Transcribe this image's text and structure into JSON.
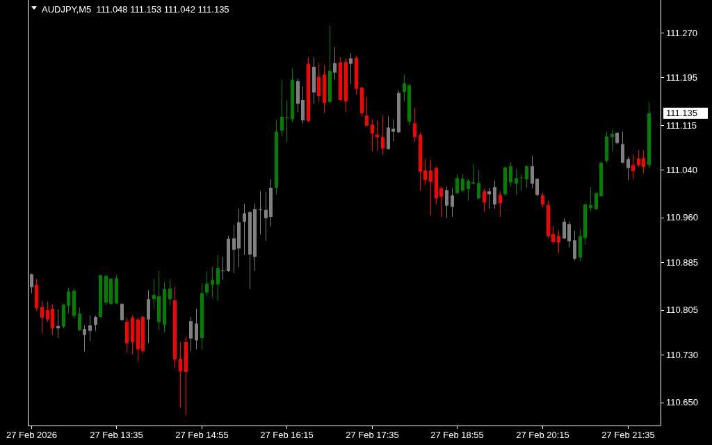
{
  "chart_data": {
    "type": "candlestick",
    "title": "AUDJPY,M5  111.048 111.153 111.042 111.135",
    "x": [
      "2026-02-27T12:15",
      "2026-02-27T12:20",
      "2026-02-27T12:25",
      "2026-02-27T12:30",
      "2026-02-27T12:35",
      "2026-02-27T12:40",
      "2026-02-27T12:45",
      "2026-02-27T12:50",
      "2026-02-27T12:55",
      "2026-02-27T13:00",
      "2026-02-27T13:05",
      "2026-02-27T13:10",
      "2026-02-27T13:15",
      "2026-02-27T13:20",
      "2026-02-27T13:25",
      "2026-02-27T13:30",
      "2026-02-27T13:35",
      "2026-02-27T13:40",
      "2026-02-27T13:45",
      "2026-02-27T13:50",
      "2026-02-27T13:55",
      "2026-02-27T14:00",
      "2026-02-27T14:05",
      "2026-02-27T14:10",
      "2026-02-27T14:15",
      "2026-02-27T14:20",
      "2026-02-27T14:25",
      "2026-02-27T14:30",
      "2026-02-27T14:35",
      "2026-02-27T14:40",
      "2026-02-27T14:45",
      "2026-02-27T14:50",
      "2026-02-27T14:55",
      "2026-02-27T15:00",
      "2026-02-27T15:05",
      "2026-02-27T15:10",
      "2026-02-27T15:15",
      "2026-02-27T15:20",
      "2026-02-27T15:25",
      "2026-02-27T15:30",
      "2026-02-27T15:35",
      "2026-02-27T15:40",
      "2026-02-27T15:45",
      "2026-02-27T15:50",
      "2026-02-27T15:55",
      "2026-02-27T16:00",
      "2026-02-27T16:05",
      "2026-02-27T16:10",
      "2026-02-27T16:15",
      "2026-02-27T16:20",
      "2026-02-27T16:25",
      "2026-02-27T16:30",
      "2026-02-27T16:35",
      "2026-02-27T16:40",
      "2026-02-27T16:45",
      "2026-02-27T16:50",
      "2026-02-27T16:55",
      "2026-02-27T17:00",
      "2026-02-27T17:05",
      "2026-02-27T17:10",
      "2026-02-27T17:15",
      "2026-02-27T17:20",
      "2026-02-27T17:25",
      "2026-02-27T17:30",
      "2026-02-27T17:35",
      "2026-02-27T17:40",
      "2026-02-27T17:45",
      "2026-02-27T17:50",
      "2026-02-27T17:55",
      "2026-02-27T18:00",
      "2026-02-27T18:05",
      "2026-02-27T18:10",
      "2026-02-27T18:15",
      "2026-02-27T18:20",
      "2026-02-27T18:25",
      "2026-02-27T18:30",
      "2026-02-27T18:35",
      "2026-02-27T18:40",
      "2026-02-27T18:45",
      "2026-02-27T18:50",
      "2026-02-27T18:55",
      "2026-02-27T19:00",
      "2026-02-27T19:05",
      "2026-02-27T19:10",
      "2026-02-27T19:15",
      "2026-02-27T19:20",
      "2026-02-27T19:25",
      "2026-02-27T19:30",
      "2026-02-27T19:35",
      "2026-02-27T19:40",
      "2026-02-27T19:45",
      "2026-02-27T19:50",
      "2026-02-27T19:55",
      "2026-02-27T20:00",
      "2026-02-27T20:05",
      "2026-02-27T20:10",
      "2026-02-27T20:15",
      "2026-02-27T20:20",
      "2026-02-27T20:25",
      "2026-02-27T20:30",
      "2026-02-27T20:35",
      "2026-02-27T20:40",
      "2026-02-27T20:45",
      "2026-02-27T20:50",
      "2026-02-27T20:55",
      "2026-02-27T21:00",
      "2026-02-27T21:05",
      "2026-02-27T21:10",
      "2026-02-27T21:15",
      "2026-02-27T21:20",
      "2026-02-27T21:25",
      "2026-02-27T21:30",
      "2026-02-27T21:35",
      "2026-02-27T21:40",
      "2026-02-27T21:45",
      "2026-02-27T21:50",
      "2026-02-27T21:55"
    ],
    "ohlc": [
      [
        110.865,
        110.866,
        110.833,
        110.843
      ],
      [
        110.847,
        110.857,
        110.803,
        110.808
      ],
      [
        110.81,
        110.82,
        110.766,
        110.792
      ],
      [
        110.805,
        110.819,
        110.785,
        110.789
      ],
      [
        110.807,
        110.814,
        110.763,
        110.774
      ],
      [
        110.774,
        110.806,
        110.758,
        110.778
      ],
      [
        110.777,
        110.814,
        110.774,
        110.814
      ],
      [
        110.812,
        110.842,
        110.799,
        110.836
      ],
      [
        110.795,
        110.841,
        110.791,
        110.837
      ],
      [
        110.771,
        110.809,
        110.77,
        110.799
      ],
      [
        110.763,
        110.779,
        110.735,
        110.773
      ],
      [
        110.77,
        110.796,
        110.753,
        110.779
      ],
      [
        110.78,
        110.795,
        110.77,
        110.793
      ],
      [
        110.793,
        110.864,
        110.792,
        110.863
      ],
      [
        110.817,
        110.864,
        110.813,
        110.862
      ],
      [
        110.815,
        110.858,
        110.814,
        110.857
      ],
      [
        110.816,
        110.864,
        110.815,
        110.858
      ],
      [
        110.815,
        110.816,
        110.787,
        110.788
      ],
      [
        110.785,
        110.792,
        110.733,
        110.749
      ],
      [
        110.792,
        110.796,
        110.73,
        110.751
      ],
      [
        110.789,
        110.792,
        110.719,
        110.739
      ],
      [
        110.793,
        110.795,
        110.732,
        110.736
      ],
      [
        110.789,
        110.838,
        110.749,
        110.823
      ],
      [
        110.823,
        110.857,
        110.807,
        110.83
      ],
      [
        110.785,
        110.871,
        110.771,
        110.828
      ],
      [
        110.78,
        110.851,
        110.767,
        110.84
      ],
      [
        110.823,
        110.857,
        110.812,
        110.841
      ],
      [
        110.821,
        110.844,
        110.707,
        110.722
      ],
      [
        110.723,
        110.751,
        110.641,
        110.702
      ],
      [
        110.751,
        110.76,
        110.628,
        110.701
      ],
      [
        110.757,
        110.793,
        110.736,
        110.786
      ],
      [
        110.782,
        110.807,
        110.739,
        110.754
      ],
      [
        110.758,
        110.85,
        110.739,
        110.833
      ],
      [
        110.834,
        110.87,
        110.827,
        110.849
      ],
      [
        110.847,
        110.878,
        110.826,
        110.855
      ],
      [
        110.848,
        110.898,
        110.82,
        110.875
      ],
      [
        110.87,
        110.894,
        110.856,
        110.871
      ],
      [
        110.87,
        110.929,
        110.869,
        110.924
      ],
      [
        110.906,
        110.947,
        110.867,
        110.925
      ],
      [
        110.908,
        110.975,
        110.877,
        110.952
      ],
      [
        110.953,
        110.983,
        110.897,
        110.967
      ],
      [
        110.969,
        110.971,
        110.84,
        110.898
      ],
      [
        110.894,
        110.983,
        110.871,
        110.974
      ],
      [
        110.973,
        111.004,
        110.932,
        110.974
      ],
      [
        110.973,
        111.003,
        110.921,
        110.959
      ],
      [
        110.961,
        111.024,
        110.945,
        111.01
      ],
      [
        111.01,
        111.124,
        110.998,
        111.104
      ],
      [
        111.106,
        111.191,
        111.096,
        111.129
      ],
      [
        111.128,
        111.156,
        111.086,
        111.129
      ],
      [
        111.125,
        111.21,
        111.12,
        111.191
      ],
      [
        111.189,
        111.193,
        111.137,
        111.151
      ],
      [
        111.123,
        111.18,
        111.118,
        111.157
      ],
      [
        111.218,
        111.229,
        111.12,
        111.122
      ],
      [
        111.17,
        111.229,
        111.151,
        111.213
      ],
      [
        111.196,
        111.219,
        111.154,
        111.164
      ],
      [
        111.2,
        111.215,
        111.135,
        111.152
      ],
      [
        111.154,
        111.282,
        111.152,
        111.206
      ],
      [
        111.203,
        111.246,
        111.191,
        111.219
      ],
      [
        111.22,
        111.229,
        111.156,
        111.157
      ],
      [
        111.221,
        111.228,
        111.137,
        111.155
      ],
      [
        111.218,
        111.236,
        111.184,
        111.227
      ],
      [
        111.228,
        111.232,
        111.166,
        111.176
      ],
      [
        111.178,
        111.179,
        111.13,
        111.135
      ],
      [
        111.131,
        111.162,
        111.113,
        111.114
      ],
      [
        111.116,
        111.125,
        111.071,
        111.101
      ],
      [
        111.099,
        111.123,
        111.072,
        111.095
      ],
      [
        111.095,
        111.132,
        111.066,
        111.076
      ],
      [
        111.075,
        111.13,
        111.074,
        111.111
      ],
      [
        111.104,
        111.125,
        111.088,
        111.109
      ],
      [
        111.103,
        111.173,
        111.102,
        111.169
      ],
      [
        111.171,
        111.2,
        111.155,
        111.185
      ],
      [
        111.121,
        111.183,
        111.114,
        111.182
      ],
      [
        111.118,
        111.144,
        111.087,
        111.095
      ],
      [
        111.099,
        111.103,
        111.005,
        111.037
      ],
      [
        111.039,
        111.059,
        111.015,
        111.023
      ],
      [
        111.039,
        111.057,
        110.964,
        111.02
      ],
      [
        111.043,
        111.046,
        110.982,
        110.992
      ],
      [
        111.009,
        111.012,
        110.961,
        110.995
      ],
      [
        111.006,
        111.012,
        110.959,
        110.98
      ],
      [
        110.978,
        111.009,
        110.961,
        110.997
      ],
      [
        111.001,
        111.032,
        110.999,
        111.026
      ],
      [
        111.005,
        111.033,
        111.003,
        111.025
      ],
      [
        111.008,
        111.025,
        110.988,
        111.022
      ],
      [
        111.017,
        111.05,
        111.016,
        111.019
      ],
      [
        110.992,
        111.04,
        110.991,
        111.018
      ],
      [
        111.004,
        111.008,
        110.969,
        110.985
      ],
      [
        110.999,
        111.01,
        110.975,
        111.004
      ],
      [
        110.982,
        111.022,
        110.975,
        111.011
      ],
      [
        110.998,
        111.004,
        110.961,
        110.984
      ],
      [
        110.999,
        111.046,
        110.997,
        111.044
      ],
      [
        111.019,
        111.053,
        111.012,
        111.046
      ],
      [
        111.017,
        111.041,
        110.998,
        111.026
      ],
      [
        111.026,
        111.032,
        111.005,
        111.027
      ],
      [
        111.024,
        111.048,
        111.01,
        111.046
      ],
      [
        111.046,
        111.064,
        111.009,
        111.017
      ],
      [
        111.025,
        111.026,
        110.996,
        110.998
      ],
      [
        110.997,
        111.002,
        110.977,
        110.982
      ],
      [
        110.981,
        110.988,
        110.926,
        110.929
      ],
      [
        110.932,
        110.946,
        110.915,
        110.919
      ],
      [
        110.929,
        110.938,
        110.9,
        110.918
      ],
      [
        110.925,
        110.959,
        110.924,
        110.953
      ],
      [
        110.949,
        110.953,
        110.91,
        110.92
      ],
      [
        110.922,
        110.938,
        110.888,
        110.891
      ],
      [
        110.893,
        110.941,
        110.886,
        110.929
      ],
      [
        110.926,
        110.983,
        110.915,
        110.982
      ],
      [
        110.976,
        111.011,
        110.97,
        110.981
      ],
      [
        110.974,
        111.002,
        110.973,
        111.001
      ],
      [
        110.996,
        111.053,
        110.995,
        111.052
      ],
      [
        111.055,
        111.104,
        111.052,
        111.096
      ],
      [
        111.095,
        111.107,
        111.071,
        111.1
      ],
      [
        111.102,
        111.103,
        111.083,
        111.085
      ],
      [
        111.083,
        111.104,
        111.051,
        111.052
      ],
      [
        111.058,
        111.062,
        111.023,
        111.043
      ],
      [
        111.048,
        111.065,
        111.024,
        111.038
      ],
      [
        111.059,
        111.073,
        111.045,
        111.048
      ],
      [
        111.06,
        111.073,
        111.034,
        111.045
      ],
      [
        111.048,
        111.153,
        111.042,
        111.135
      ]
    ],
    "colors": [
      "#808080",
      "#ff0000",
      "#ff0000",
      "#ff0000",
      "#ff0000",
      "#808080",
      "#008000",
      "#008000",
      "#008000",
      "#008000",
      "#808080",
      "#808080",
      "#808080",
      "#008000",
      "#008000",
      "#008000",
      "#008000",
      "#808080",
      "#ff0000",
      "#ff0000",
      "#ff0000",
      "#ff0000",
      "#808080",
      "#008000",
      "#008000",
      "#008000",
      "#008000",
      "#ff0000",
      "#ff0000",
      "#ff0000",
      "#808080",
      "#808080",
      "#008000",
      "#008000",
      "#008000",
      "#008000",
      "#808080",
      "#808080",
      "#808080",
      "#808080",
      "#808080",
      "#808080",
      "#808080",
      "#808080",
      "#808080",
      "#808080",
      "#008000",
      "#008000",
      "#008000",
      "#008000",
      "#808080",
      "#808080",
      "#ff0000",
      "#808080",
      "#ff0000",
      "#ff0000",
      "#008000",
      "#808080",
      "#ff0000",
      "#ff0000",
      "#808080",
      "#ff0000",
      "#ff0000",
      "#ff0000",
      "#ff0000",
      "#ff0000",
      "#ff0000",
      "#808080",
      "#808080",
      "#808080",
      "#008000",
      "#008000",
      "#ff0000",
      "#ff0000",
      "#ff0000",
      "#ff0000",
      "#ff0000",
      "#ff0000",
      "#808080",
      "#808080",
      "#008000",
      "#008000",
      "#008000",
      "#008000",
      "#008000",
      "#ff0000",
      "#808080",
      "#808080",
      "#ff0000",
      "#008000",
      "#008000",
      "#008000",
      "#008000",
      "#008000",
      "#808080",
      "#808080",
      "#ff0000",
      "#ff0000",
      "#ff0000",
      "#ff0000",
      "#808080",
      "#808080",
      "#808080",
      "#008000",
      "#008000",
      "#008000",
      "#008000",
      "#008000",
      "#008000",
      "#008000",
      "#808080",
      "#808080",
      "#808080",
      "#ff0000",
      "#ff0000",
      "#ff0000",
      "#008000"
    ],
    "xlim": [
      "2026-02-27T12:12",
      "2026-02-27T22:06"
    ],
    "xticks": [
      {
        "value": "2026-02-27T12:15",
        "label": "27 Feb 2026"
      },
      {
        "value": "2026-02-27T13:35",
        "label": "27 Feb 13:35"
      },
      {
        "value": "2026-02-27T14:55",
        "label": "27 Feb 14:55"
      },
      {
        "value": "2026-02-27T16:15",
        "label": "27 Feb 16:15"
      },
      {
        "value": "2026-02-27T17:35",
        "label": "27 Feb 17:35"
      },
      {
        "value": "2026-02-27T18:55",
        "label": "27 Feb 18:55"
      },
      {
        "value": "2026-02-27T20:15",
        "label": "27 Feb 20:15"
      },
      {
        "value": "2026-02-27T21:35",
        "label": "27 Feb 21:35"
      }
    ],
    "ylim": [
      110.611,
      111.325
    ],
    "yticks": [
      {
        "value": 110.65,
        "label": "110.650"
      },
      {
        "value": 110.73,
        "label": "110.730"
      },
      110.805,
      110.885,
      {
        "value": 110.96,
        "label": "110.960"
      },
      {
        "value": 111.04,
        "label": "111.040"
      },
      111.115,
      111.195,
      {
        "value": 111.27,
        "label": "111.270"
      }
    ],
    "annotations": [
      "111.135"
    ]
  }
}
